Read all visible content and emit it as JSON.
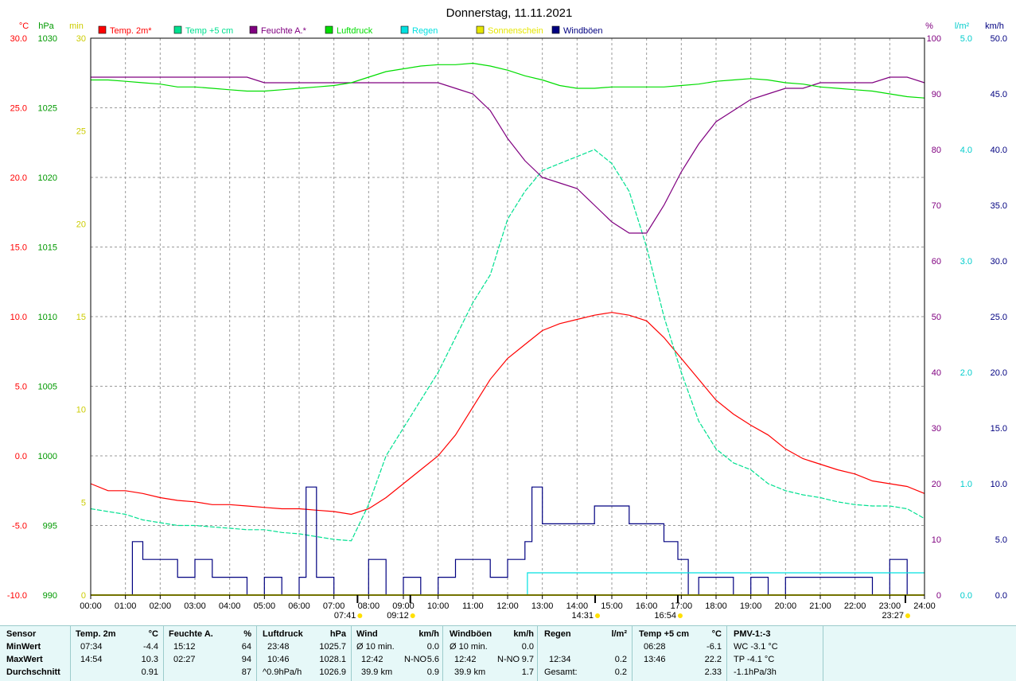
{
  "chart_data": {
    "type": "line",
    "title": "Donnerstag, 11.11.2021",
    "legend": [
      {
        "name": "Temp. 2m*",
        "color": "#ff0000"
      },
      {
        "name": "Temp +5 cm",
        "color": "#00e090"
      },
      {
        "name": "Feuchte A.*",
        "color": "#800080"
      },
      {
        "name": "Luftdruck",
        "color": "#00dd00"
      },
      {
        "name": "Regen",
        "color": "#00e0e0"
      },
      {
        "name": "Sonnenschein",
        "color": "#e6e600"
      },
      {
        "name": "Windböen",
        "color": "#000080"
      }
    ],
    "axes": {
      "temp": {
        "unit": "°C",
        "min": -10,
        "max": 30,
        "ticks": [
          "30.0",
          "25.0",
          "20.0",
          "15.0",
          "10.0",
          "5.0",
          "0.0",
          "-5.0",
          "-10.0"
        ],
        "color": "#ff0000"
      },
      "pressure": {
        "unit": "hPa",
        "min": 990,
        "max": 1030,
        "ticks": [
          "1030",
          "1025",
          "1020",
          "1015",
          "1010",
          "1005",
          "1000",
          "995",
          "990"
        ],
        "color": "#009900"
      },
      "sun": {
        "unit": "min",
        "min": 0,
        "max": 30,
        "ticks": [
          "30",
          "25",
          "20",
          "15",
          "10",
          "5",
          "0"
        ],
        "color": "#cccc00"
      },
      "humidity": {
        "unit": "%",
        "min": 0,
        "max": 100,
        "ticks": [
          "100",
          "90",
          "80",
          "70",
          "60",
          "50",
          "40",
          "30",
          "20",
          "10",
          "0"
        ],
        "color": "#800080"
      },
      "rain": {
        "unit": "l/m²",
        "min": 0,
        "max": 5,
        "ticks": [
          "5.0",
          "4.0",
          "3.0",
          "2.0",
          "1.0",
          "0.0"
        ],
        "color": "#00cccc"
      },
      "wind": {
        "unit": "km/h",
        "min": 0,
        "max": 50,
        "ticks": [
          "50.0",
          "45.0",
          "40.0",
          "35.0",
          "30.0",
          "25.0",
          "20.0",
          "15.0",
          "10.0",
          "5.0",
          "0.0"
        ],
        "color": "#000080"
      }
    },
    "x_ticks": [
      "00:00",
      "01:00",
      "02:00",
      "03:00",
      "04:00",
      "05:00",
      "06:00",
      "07:00",
      "08:00",
      "09:00",
      "10:00",
      "11:00",
      "12:00",
      "13:00",
      "14:00",
      "15:00",
      "16:00",
      "17:00",
      "18:00",
      "19:00",
      "20:00",
      "21:00",
      "22:00",
      "23:00",
      "24:00"
    ],
    "x_markers": [
      {
        "label": "09:12",
        "x": 9.2
      },
      {
        "label": "07:41",
        "x": 7.68
      },
      {
        "label": "14:31",
        "x": 14.52
      },
      {
        "label": "16:54",
        "x": 16.9
      },
      {
        "label": "23:27",
        "x": 23.45
      }
    ],
    "series": [
      {
        "name": "Temp. 2m*",
        "axis": "temp",
        "color": "#ff0000",
        "x": [
          0,
          0.5,
          1,
          1.5,
          2,
          2.5,
          3,
          3.5,
          4,
          4.5,
          5,
          5.5,
          6,
          6.5,
          7,
          7.5,
          8,
          8.5,
          9,
          9.5,
          10,
          10.5,
          11,
          11.5,
          12,
          12.5,
          13,
          13.5,
          14,
          14.5,
          15,
          15.5,
          16,
          16.5,
          17,
          17.5,
          18,
          18.5,
          19,
          19.5,
          20,
          20.5,
          21,
          21.5,
          22,
          22.5,
          23,
          23.5,
          24
        ],
        "y": [
          -2.0,
          -2.5,
          -2.5,
          -2.7,
          -3.0,
          -3.2,
          -3.3,
          -3.5,
          -3.5,
          -3.6,
          -3.7,
          -3.8,
          -3.8,
          -3.9,
          -4.0,
          -4.2,
          -3.8,
          -3.0,
          -2.0,
          -1.0,
          0.0,
          1.5,
          3.5,
          5.5,
          7.0,
          8.0,
          9.0,
          9.5,
          9.8,
          10.1,
          10.3,
          10.1,
          9.7,
          8.5,
          7.0,
          5.5,
          4.0,
          3.0,
          2.2,
          1.5,
          0.5,
          -0.2,
          -0.6,
          -1.0,
          -1.3,
          -1.8,
          -2.0,
          -2.2,
          -2.7
        ]
      },
      {
        "name": "Temp +5 cm",
        "axis": "temp",
        "color": "#00e090",
        "x": [
          0,
          0.5,
          1,
          1.5,
          2,
          2.5,
          3,
          3.5,
          4,
          4.5,
          5,
          5.5,
          6,
          6.5,
          7,
          7.5,
          8,
          8.5,
          9,
          9.5,
          10,
          10.5,
          11,
          11.5,
          12,
          12.5,
          13,
          13.5,
          14,
          14.5,
          15,
          15.5,
          16,
          16.5,
          17,
          17.5,
          18,
          18.5,
          19,
          19.5,
          20,
          20.5,
          21,
          21.5,
          22,
          22.5,
          23,
          23.5,
          24
        ],
        "y": [
          -3.8,
          -4.0,
          -4.2,
          -4.6,
          -4.8,
          -5.0,
          -5.0,
          -5.1,
          -5.2,
          -5.3,
          -5.3,
          -5.5,
          -5.6,
          -5.8,
          -6.0,
          -6.1,
          -3.5,
          0.0,
          2.0,
          4.0,
          6.0,
          8.5,
          11.0,
          13.0,
          17.0,
          19.0,
          20.5,
          21.0,
          21.5,
          22.0,
          21.0,
          19.0,
          15.0,
          10.0,
          6.0,
          2.5,
          0.5,
          -0.5,
          -1.0,
          -2.0,
          -2.5,
          -2.8,
          -3.0,
          -3.3,
          -3.5,
          -3.6,
          -3.6,
          -3.8,
          -4.5
        ]
      },
      {
        "name": "Feuchte A.*",
        "axis": "humidity",
        "color": "#800080",
        "x": [
          0,
          0.5,
          1,
          1.5,
          2,
          2.5,
          3,
          3.5,
          4,
          4.5,
          5,
          5.5,
          6,
          6.5,
          7,
          7.5,
          8,
          8.5,
          9,
          9.5,
          10,
          10.5,
          11,
          11.5,
          12,
          12.5,
          13,
          13.5,
          14,
          14.5,
          15,
          15.5,
          16,
          16.5,
          17,
          17.5,
          18,
          18.5,
          19,
          19.5,
          20,
          20.5,
          21,
          21.5,
          22,
          22.5,
          23,
          23.5,
          24
        ],
        "y": [
          93,
          93,
          93,
          93,
          93,
          93,
          93,
          93,
          93,
          93,
          92,
          92,
          92,
          92,
          92,
          92,
          92,
          92,
          92,
          92,
          92,
          91,
          90,
          87,
          82,
          78,
          75,
          74,
          73,
          70,
          67,
          65,
          65,
          70,
          76,
          81,
          85,
          87,
          89,
          90,
          91,
          91,
          92,
          92,
          92,
          92,
          93,
          93,
          92
        ]
      },
      {
        "name": "Luftdruck",
        "axis": "pressure",
        "color": "#00dd00",
        "x": [
          0,
          0.5,
          1,
          1.5,
          2,
          2.5,
          3,
          3.5,
          4,
          4.5,
          5,
          5.5,
          6,
          6.5,
          7,
          7.5,
          8,
          8.5,
          9,
          9.5,
          10,
          10.5,
          11,
          11.5,
          12,
          12.5,
          13,
          13.5,
          14,
          14.5,
          15,
          15.5,
          16,
          16.5,
          17,
          17.5,
          18,
          18.5,
          19,
          19.5,
          20,
          20.5,
          21,
          21.5,
          22,
          22.5,
          23,
          23.5,
          24
        ],
        "y": [
          1027.0,
          1027.0,
          1026.9,
          1026.8,
          1026.7,
          1026.5,
          1026.5,
          1026.4,
          1026.3,
          1026.2,
          1026.2,
          1026.3,
          1026.4,
          1026.5,
          1026.6,
          1026.8,
          1027.2,
          1027.6,
          1027.8,
          1028.0,
          1028.1,
          1028.1,
          1028.2,
          1028.0,
          1027.7,
          1027.3,
          1027.0,
          1026.6,
          1026.4,
          1026.4,
          1026.5,
          1026.5,
          1026.5,
          1026.5,
          1026.6,
          1026.7,
          1026.9,
          1027.0,
          1027.1,
          1027.0,
          1026.8,
          1026.7,
          1026.5,
          1026.4,
          1026.3,
          1026.2,
          1026.0,
          1025.8,
          1025.7
        ]
      },
      {
        "name": "Windböen",
        "axis": "wind",
        "color": "#000080",
        "x": [
          0,
          1,
          1.2,
          1.5,
          2,
          2.5,
          3,
          3.5,
          4,
          4.5,
          5,
          5.5,
          6,
          6.2,
          6.5,
          7,
          7.5,
          8,
          8.5,
          9,
          9.5,
          10,
          10.5,
          11,
          11.5,
          12,
          12.5,
          12.7,
          13,
          13.5,
          14,
          14.5,
          15,
          15.5,
          16,
          16.5,
          16.9,
          17.2,
          17.5,
          18,
          18.5,
          19,
          19.5,
          20,
          20.5,
          21,
          21.5,
          22,
          22.5,
          23,
          23.3,
          23.5,
          24
        ],
        "y": [
          0,
          0,
          4.8,
          3.2,
          3.2,
          1.6,
          3.2,
          1.6,
          1.6,
          0,
          1.6,
          0,
          1.6,
          9.7,
          1.6,
          0,
          0,
          3.2,
          0,
          1.6,
          0,
          1.6,
          3.2,
          3.2,
          1.6,
          3.2,
          4.8,
          9.7,
          6.4,
          6.4,
          6.4,
          8.0,
          8.0,
          6.4,
          6.4,
          4.8,
          3.2,
          0,
          1.6,
          1.6,
          0,
          1.6,
          0,
          1.6,
          1.6,
          1.6,
          1.6,
          1.6,
          0,
          3.2,
          3.2,
          0,
          0
        ]
      },
      {
        "name": "Regen",
        "axis": "rain",
        "color": "#00e0e0",
        "x": [
          0,
          12.57,
          12.57,
          24
        ],
        "y": [
          0,
          0,
          0.2,
          0.2
        ]
      },
      {
        "name": "Sonnenschein",
        "axis": "sun",
        "color": "#e6e600",
        "x": [
          0,
          24
        ],
        "y": [
          0,
          0
        ]
      }
    ]
  },
  "summary": {
    "sensor": {
      "title": "Sensor",
      "rows": [
        "MinWert",
        "MaxWert",
        "Durchschnitt"
      ]
    },
    "temp2m": {
      "title": "Temp. 2m",
      "unit": "°C",
      "rows": [
        [
          "07:34",
          "-4.4"
        ],
        [
          "14:54",
          "10.3"
        ],
        [
          "",
          "0.91"
        ]
      ]
    },
    "feuchte": {
      "title": "Feuchte A.",
      "unit": "%",
      "rows": [
        [
          "15:12",
          "64"
        ],
        [
          "02:27",
          "94"
        ],
        [
          "",
          "87"
        ]
      ]
    },
    "luftdruck": {
      "title": "Luftdruck",
      "unit": "hPa",
      "rows": [
        [
          "23:48",
          "1025.7"
        ],
        [
          "10:46",
          "1028.1"
        ],
        [
          "^0.9hPa/h",
          "1026.9"
        ]
      ]
    },
    "wind": {
      "title": "Wind",
      "unit": "km/h",
      "rows": [
        [
          "Ø 10 min.",
          "",
          "0.0"
        ],
        [
          "12:42",
          "N-NO",
          "5.6"
        ],
        [
          "39.9 km",
          "",
          "0.9"
        ]
      ]
    },
    "windboeen": {
      "title": "Windböen",
      "unit": "km/h",
      "rows": [
        [
          "Ø 10 min.",
          "",
          "0.0"
        ],
        [
          "12:42",
          "N-NO",
          "9.7"
        ],
        [
          "39.9 km",
          "",
          "1.7"
        ]
      ]
    },
    "regen": {
      "title": "Regen",
      "unit": "l/m²",
      "rows": [
        [
          "",
          ""
        ],
        [
          "12:34",
          "0.2"
        ],
        [
          "Gesamt:",
          "0.2"
        ]
      ]
    },
    "temp5cm": {
      "title": "Temp +5 cm",
      "unit": "°C",
      "rows": [
        [
          "06:28",
          "-6.1"
        ],
        [
          "13:46",
          "22.2"
        ],
        [
          "",
          "2.33"
        ]
      ]
    },
    "pmv": {
      "title": "PMV-1:-3",
      "rows": [
        "WC -3.1 °C",
        "TP -4.1 °C",
        "-1.1hPa/3h"
      ]
    }
  }
}
